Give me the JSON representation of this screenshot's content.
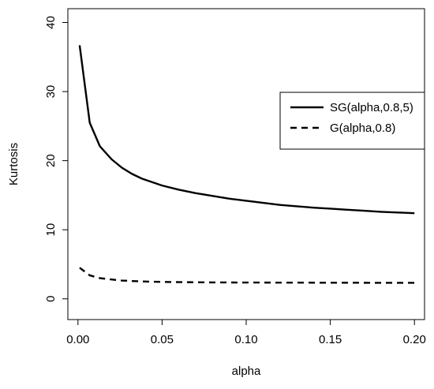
{
  "chart_data": {
    "type": "line",
    "title": "",
    "xlabel": "alpha",
    "ylabel": "Kurtosis",
    "xlim": [
      -0.006,
      0.206
    ],
    "ylim": [
      -3,
      42
    ],
    "xticks": [
      0.0,
      0.05,
      0.1,
      0.15,
      0.2
    ],
    "xtick_labels": [
      "0.00",
      "0.05",
      "0.10",
      "0.15",
      "0.20"
    ],
    "yticks": [
      0,
      10,
      20,
      30,
      40
    ],
    "ytick_labels": [
      "0",
      "10",
      "20",
      "30",
      "40"
    ],
    "grid": false,
    "legend_position": "right",
    "series": [
      {
        "name": "SG(alpha,0.8,5)",
        "line_style": "solid",
        "color": "#000000",
        "x": [
          0.001,
          0.007,
          0.013,
          0.02,
          0.026,
          0.032,
          0.038,
          0.044,
          0.05,
          0.06,
          0.07,
          0.08,
          0.09,
          0.1,
          0.11,
          0.12,
          0.13,
          0.14,
          0.15,
          0.16,
          0.17,
          0.18,
          0.19,
          0.2
        ],
        "y": [
          36.7,
          25.5,
          22.1,
          20.2,
          19.0,
          18.1,
          17.4,
          16.9,
          16.4,
          15.8,
          15.3,
          14.9,
          14.5,
          14.2,
          13.9,
          13.6,
          13.4,
          13.2,
          13.05,
          12.9,
          12.75,
          12.6,
          12.5,
          12.4
        ]
      },
      {
        "name": "G(alpha,0.8)",
        "line_style": "dashed",
        "color": "#000000",
        "x": [
          0.001,
          0.007,
          0.013,
          0.02,
          0.026,
          0.032,
          0.038,
          0.044,
          0.05,
          0.06,
          0.07,
          0.08,
          0.09,
          0.1,
          0.12,
          0.14,
          0.16,
          0.18,
          0.2
        ],
        "y": [
          4.5,
          3.4,
          3.0,
          2.8,
          2.65,
          2.58,
          2.52,
          2.48,
          2.45,
          2.42,
          2.4,
          2.38,
          2.37,
          2.36,
          2.35,
          2.34,
          2.33,
          2.32,
          2.32
        ]
      }
    ]
  }
}
